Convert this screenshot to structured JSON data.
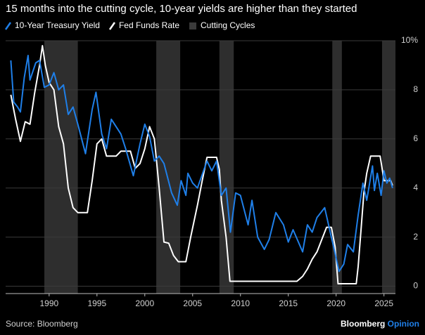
{
  "chart_data": {
    "type": "line",
    "title": "15 months into the cutting cycle, 10-year yields are higher than they started",
    "source": "Source: Bloomberg",
    "brand": "Bloomberg",
    "brand_suffix": "Opinion",
    "xlim": [
      1985.6,
      2026.2
    ],
    "xticks": [
      1990,
      1995,
      2000,
      2005,
      2010,
      2015,
      2020,
      2025
    ],
    "ylim": [
      -0.3,
      10
    ],
    "yticks": [
      0,
      2,
      4,
      6,
      8,
      {
        "value": 10,
        "label": "10%"
      }
    ],
    "grid": true,
    "shading": {
      "name": "Cutting Cycles",
      "color": "#2e2e2e",
      "ranges": [
        [
          1989.5,
          1993.0
        ],
        [
          2001.2,
          2003.7
        ],
        [
          2007.8,
          2009.3
        ],
        [
          2019.6,
          2020.6
        ],
        [
          2024.8,
          2026.2
        ]
      ]
    },
    "series": [
      {
        "name": "10-Year Treasury Yield",
        "color": "#1f7fe8",
        "x": [
          1986.0,
          1986.3,
          1986.7,
          1987.0,
          1987.4,
          1987.8,
          1988.0,
          1988.6,
          1989.0,
          1989.5,
          1990.0,
          1990.5,
          1991.0,
          1991.5,
          1992.0,
          1992.5,
          1993.0,
          1993.8,
          1994.5,
          1994.9,
          1995.5,
          1996.0,
          1996.5,
          1997.0,
          1997.5,
          1998.0,
          1998.8,
          1999.5,
          2000.0,
          2000.5,
          2001.0,
          2001.5,
          2002.0,
          2002.8,
          2003.4,
          2003.8,
          2004.3,
          2004.5,
          2005.0,
          2005.5,
          2006.5,
          2007.0,
          2007.5,
          2008.0,
          2008.5,
          2008.95,
          2009.5,
          2010.0,
          2010.8,
          2011.2,
          2011.8,
          2012.5,
          2013.0,
          2013.7,
          2014.5,
          2015.0,
          2015.5,
          2016.5,
          2017.0,
          2017.5,
          2018.0,
          2018.8,
          2019.5,
          2019.8,
          2020.3,
          2020.8,
          2021.2,
          2021.8,
          2022.3,
          2022.8,
          2023.2,
          2023.8,
          2024.0,
          2024.3,
          2024.7,
          2025.0,
          2025.3,
          2025.6,
          2025.9
        ],
        "values": [
          9.2,
          7.5,
          7.3,
          7.1,
          8.5,
          9.4,
          8.4,
          9.1,
          9.2,
          8.1,
          8.2,
          8.7,
          8.0,
          8.2,
          7.0,
          7.3,
          6.6,
          5.4,
          7.2,
          7.9,
          6.2,
          5.6,
          6.8,
          6.5,
          6.2,
          5.6,
          4.5,
          5.8,
          6.6,
          6.1,
          5.1,
          5.3,
          5.0,
          3.8,
          3.3,
          4.3,
          3.7,
          4.6,
          4.2,
          4.0,
          5.1,
          4.7,
          5.1,
          3.7,
          4.0,
          2.2,
          3.8,
          3.7,
          2.5,
          3.5,
          2.0,
          1.5,
          1.9,
          3.0,
          2.5,
          1.8,
          2.3,
          1.4,
          2.5,
          2.2,
          2.8,
          3.2,
          2.0,
          1.5,
          0.6,
          0.9,
          1.7,
          1.4,
          2.9,
          4.2,
          3.5,
          4.9,
          3.9,
          4.6,
          3.7,
          4.7,
          4.2,
          4.4,
          4.0
        ]
      },
      {
        "name": "Fed Funds Rate",
        "color": "#ffffff",
        "x": [
          1986.0,
          1986.5,
          1987.0,
          1987.5,
          1988.0,
          1988.5,
          1989.0,
          1989.3,
          1989.6,
          1990.0,
          1990.5,
          1991.0,
          1991.5,
          1992.0,
          1992.5,
          1993.0,
          1994.0,
          1994.5,
          1995.0,
          1995.5,
          1996.0,
          1997.0,
          1997.5,
          1998.5,
          1999.0,
          1999.5,
          2000.0,
          2000.5,
          2001.0,
          2001.5,
          2002.0,
          2002.5,
          2003.0,
          2003.5,
          2004.3,
          2004.8,
          2005.5,
          2006.0,
          2006.5,
          2007.5,
          2007.8,
          2008.0,
          2008.5,
          2008.9,
          2015.9,
          2016.5,
          2017.0,
          2017.5,
          2018.0,
          2018.5,
          2019.0,
          2019.5,
          2019.9,
          2020.2,
          2022.1,
          2022.3,
          2022.6,
          2022.9,
          2023.2,
          2023.6,
          2024.6,
          2024.8,
          2025.0,
          2025.7,
          2025.9
        ],
        "values": [
          7.8,
          6.8,
          5.9,
          6.7,
          6.6,
          7.9,
          9.0,
          9.8,
          9.0,
          8.3,
          8.0,
          6.5,
          5.8,
          4.0,
          3.2,
          3.0,
          3.0,
          4.3,
          5.8,
          6.0,
          5.3,
          5.3,
          5.5,
          5.5,
          4.8,
          5.0,
          5.6,
          6.5,
          6.0,
          4.0,
          1.8,
          1.75,
          1.25,
          1.0,
          1.0,
          2.0,
          3.3,
          4.3,
          5.25,
          5.25,
          4.75,
          3.5,
          2.0,
          0.2,
          0.2,
          0.4,
          0.7,
          1.1,
          1.4,
          1.9,
          2.4,
          2.4,
          1.6,
          0.1,
          0.1,
          0.8,
          2.3,
          3.8,
          4.6,
          5.3,
          5.3,
          4.8,
          4.3,
          4.3,
          4.1
        ]
      }
    ]
  }
}
